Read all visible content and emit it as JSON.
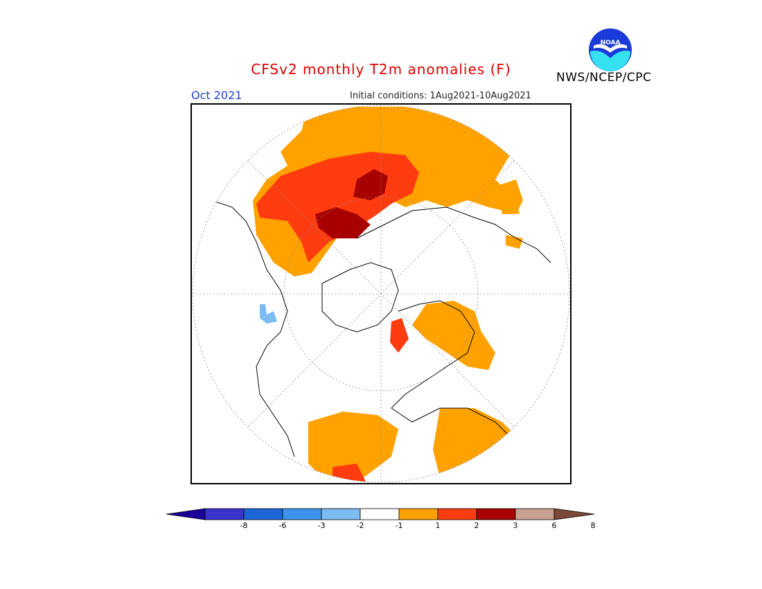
{
  "title": "CFSv2 monthly T2m anomalies (F)",
  "month": "Oct 2021",
  "initial_conditions": "Initial conditions: 1Aug2021-10Aug2021",
  "organization": "NWS/NCEP/CPC",
  "logo_text": "NOAA",
  "colorbar": {
    "ticks": [
      "-8",
      "-6",
      "-3",
      "-2",
      "-1",
      "1",
      "2",
      "3",
      "6",
      "8"
    ],
    "colors": [
      "#1a0098",
      "#3a34cc",
      "#1c66d8",
      "#3c94ec",
      "#7cbcf2",
      "#ffffff",
      "#ffa200",
      "#ff3c10",
      "#a80000",
      "#c8a090",
      "#7a4838"
    ]
  }
}
